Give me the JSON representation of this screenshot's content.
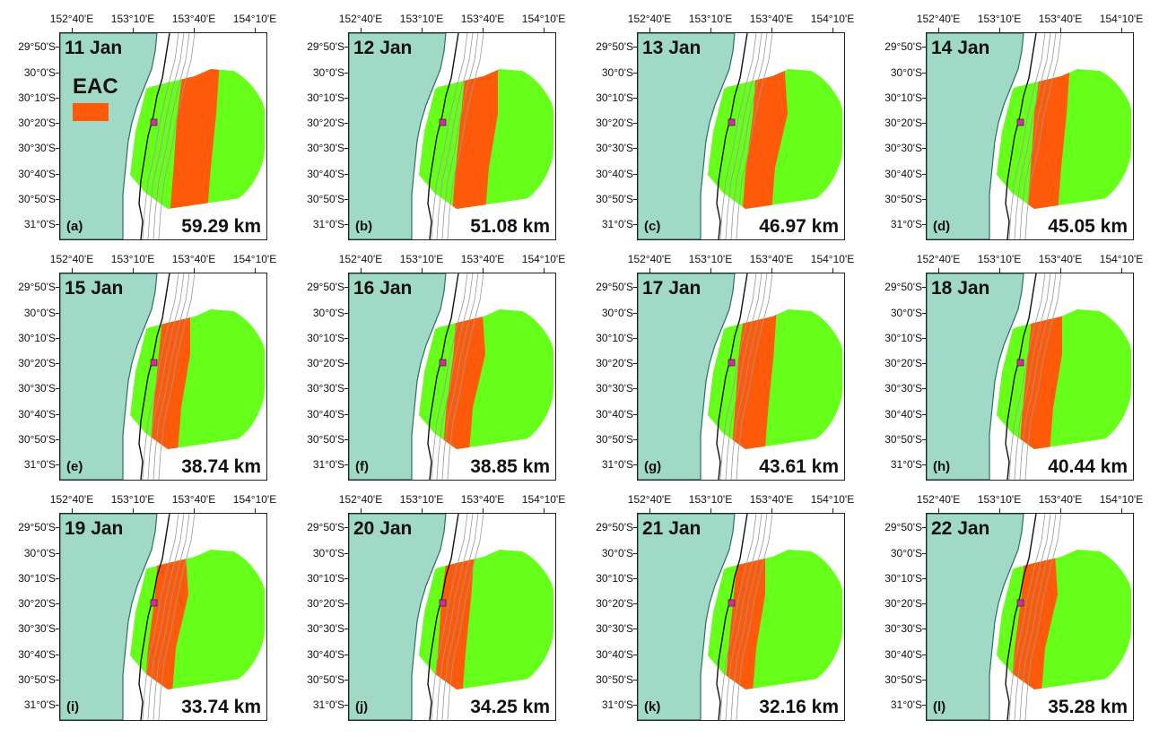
{
  "figure": {
    "lon_labels": [
      "152°40'E",
      "153°10'E",
      "153°40'E",
      "154°10'E"
    ],
    "lat_labels": [
      "29°50'S",
      "30°0'S",
      "30°10'S",
      "30°20'S",
      "30°30'S",
      "30°40'S",
      "30°50'S",
      "31°0'S"
    ],
    "legend": {
      "label": "EAC",
      "color": "#FF5A0A"
    },
    "colors": {
      "land": "#A0D9C5",
      "domain": "#66FF1A",
      "eac": "#FF5A0A",
      "marker": "#D62AA8",
      "coast": "#2A6F6A",
      "bathy": "#9A9A9A"
    },
    "panels": [
      {
        "date": "11 Jan",
        "letter": "(a)",
        "distance": "59.29 km",
        "width_km": 59.29,
        "eac_west": 0.35,
        "eac_east": 0.6
      },
      {
        "date": "12 Jan",
        "letter": "(b)",
        "distance": "51.08 km",
        "width_km": 51.08,
        "eac_west": 0.3,
        "eac_east": 0.52
      },
      {
        "date": "13 Jan",
        "letter": "(c)",
        "distance": "46.97 km",
        "width_km": 46.97,
        "eac_west": 0.31,
        "eac_east": 0.5
      },
      {
        "date": "14 Jan",
        "letter": "(d)",
        "distance": "45.05 km",
        "width_km": 45.05,
        "eac_west": 0.28,
        "eac_east": 0.48
      },
      {
        "date": "15 Jan",
        "letter": "(e)",
        "distance": "38.74 km",
        "width_km": 38.74,
        "eac_west": 0.2,
        "eac_east": 0.38
      },
      {
        "date": "16 Jan",
        "letter": "(f)",
        "distance": "38.85 km",
        "width_km": 38.85,
        "eac_west": 0.23,
        "eac_east": 0.4
      },
      {
        "date": "17 Jan",
        "letter": "(g)",
        "distance": "43.61 km",
        "width_km": 43.61,
        "eac_west": 0.23,
        "eac_east": 0.45
      },
      {
        "date": "18 Jan",
        "letter": "(h)",
        "distance": "40.44 km",
        "width_km": 40.44,
        "eac_west": 0.22,
        "eac_east": 0.42
      },
      {
        "date": "19 Jan",
        "letter": "(i)",
        "distance": "33.74 km",
        "width_km": 33.74,
        "eac_west": 0.16,
        "eac_east": 0.34
      },
      {
        "date": "20 Jan",
        "letter": "(j)",
        "distance": "34.25 km",
        "width_km": 34.25,
        "eac_west": 0.17,
        "eac_east": 0.35
      },
      {
        "date": "21 Jan",
        "letter": "(k)",
        "distance": "32.16 km",
        "width_km": 32.16,
        "eac_west": 0.18,
        "eac_east": 0.36
      },
      {
        "date": "22 Jan",
        "letter": "(l)",
        "distance": "35.28 km",
        "width_km": 35.28,
        "eac_west": 0.16,
        "eac_east": 0.36
      }
    ]
  }
}
